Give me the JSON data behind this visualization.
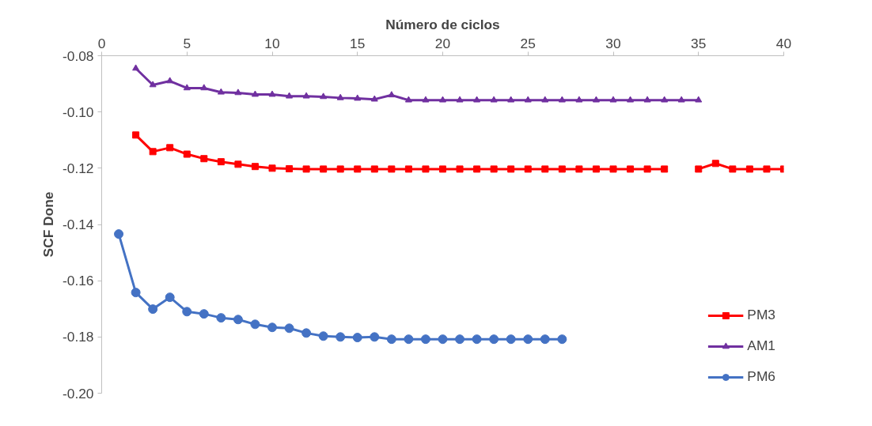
{
  "chart_data": {
    "type": "line",
    "xlabel": "Número de ciclos",
    "ylabel": "SCF Done",
    "xlim": [
      0,
      40
    ],
    "xticks": [
      0,
      5,
      10,
      15,
      20,
      25,
      30,
      35,
      40
    ],
    "ylim": [
      -0.2,
      -0.08
    ],
    "yticks": [
      {
        "value": -0.2,
        "label": "-0.20"
      },
      {
        "value": -0.18,
        "label": "-0.18"
      },
      {
        "value": -0.16,
        "label": "-0.16"
      },
      {
        "value": -0.14,
        "label": "-0.14"
      },
      {
        "value": -0.12,
        "label": "-0.12"
      },
      {
        "value": -0.1,
        "label": "-0.10"
      },
      {
        "value": -0.08,
        "label": "-0.08"
      }
    ],
    "grid": false,
    "legend": "right",
    "line_style": "solid",
    "series": [
      {
        "name": "PM3",
        "color": "#ff0000",
        "marker": "square",
        "x": [
          2,
          3,
          4,
          5,
          6,
          7,
          8,
          9,
          10,
          11,
          12,
          13,
          14,
          15,
          16,
          17,
          18,
          19,
          20,
          21,
          22,
          23,
          24,
          25,
          26,
          27,
          28,
          29,
          30,
          31,
          32,
          33,
          34,
          35,
          36,
          37,
          38,
          39,
          40
        ],
        "values": [
          -0.1082,
          -0.1141,
          -0.1127,
          -0.115,
          -0.1166,
          -0.1177,
          -0.1186,
          -0.1194,
          -0.12,
          -0.1202,
          -0.1203,
          -0.1203,
          -0.1203,
          -0.1203,
          -0.1203,
          -0.1203,
          -0.1203,
          -0.1203,
          -0.1203,
          -0.1203,
          -0.1203,
          -0.1203,
          -0.1203,
          -0.1203,
          -0.1203,
          -0.1203,
          -0.1203,
          -0.1203,
          -0.1203,
          -0.1203,
          -0.1203,
          -0.1203,
          null,
          -0.1203,
          -0.1183,
          -0.1203,
          -0.1203,
          -0.1203,
          -0.1203
        ]
      },
      {
        "name": "AM1",
        "color": "#7030a0",
        "marker": "triangle",
        "x": [
          2,
          3,
          4,
          5,
          6,
          7,
          8,
          9,
          10,
          11,
          12,
          13,
          14,
          15,
          16,
          17,
          18,
          19,
          20,
          21,
          22,
          23,
          24,
          25,
          26,
          27,
          28,
          29,
          30,
          31,
          32,
          33,
          34,
          35
        ],
        "values": [
          -0.0845,
          -0.0904,
          -0.089,
          -0.0915,
          -0.0915,
          -0.093,
          -0.0932,
          -0.0938,
          -0.0938,
          -0.0944,
          -0.0944,
          -0.0946,
          -0.095,
          -0.0952,
          -0.0955,
          -0.094,
          -0.0958,
          -0.0958,
          -0.0958,
          -0.0958,
          -0.0958,
          -0.0958,
          -0.0958,
          -0.0958,
          -0.0958,
          -0.0958,
          -0.0958,
          -0.0958,
          -0.0958,
          -0.0958,
          -0.0958,
          -0.0958,
          -0.0958,
          -0.0958
        ]
      },
      {
        "name": "PM6",
        "color": "#4472c4",
        "marker": "circle",
        "x": [
          1,
          2,
          3,
          4,
          5,
          6,
          7,
          8,
          9,
          10,
          11,
          12,
          13,
          14,
          15,
          16,
          17,
          18,
          19,
          20,
          21,
          22,
          23,
          24,
          25,
          26,
          27
        ],
        "values": [
          -0.1434,
          -0.1642,
          -0.1701,
          -0.1659,
          -0.171,
          -0.1718,
          -0.1732,
          -0.1738,
          -0.1755,
          -0.1766,
          -0.1769,
          -0.1786,
          -0.1797,
          -0.18,
          -0.1802,
          -0.18,
          -0.1808,
          -0.1808,
          -0.1808,
          -0.1808,
          -0.1808,
          -0.1808,
          -0.1808,
          -0.1808,
          -0.1808,
          -0.1808,
          -0.1808
        ]
      }
    ]
  }
}
